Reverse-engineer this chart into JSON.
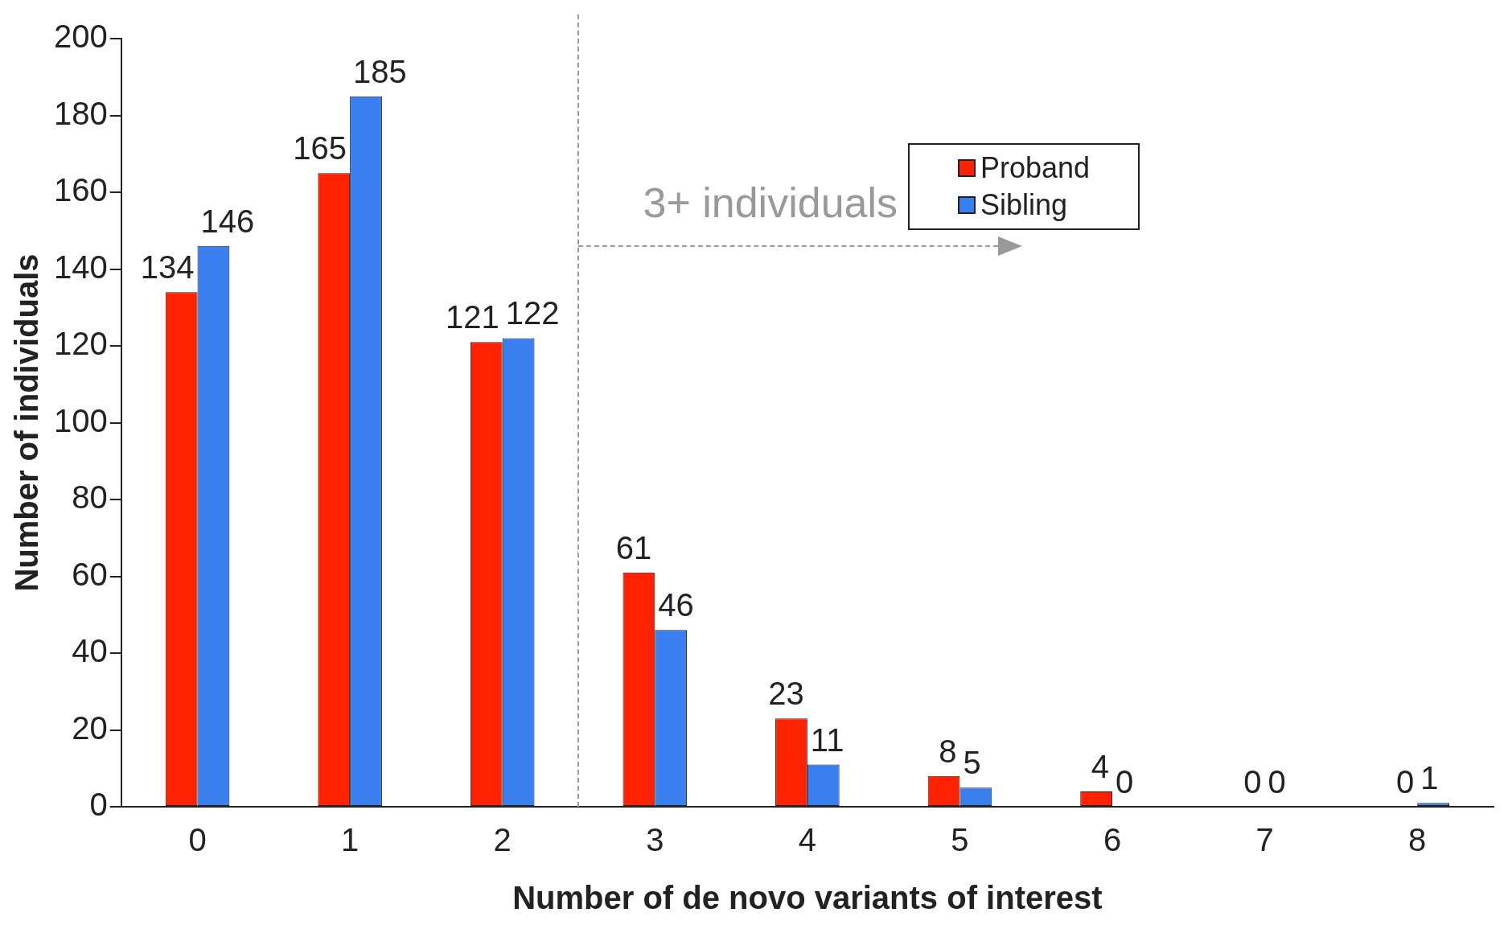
{
  "chart_data": {
    "type": "bar",
    "xlabel": "Number of de novo variants of interest",
    "ylabel": "Number of individuals",
    "categories": [
      "0",
      "1",
      "2",
      "3",
      "4",
      "5",
      "6",
      "7",
      "8"
    ],
    "series": [
      {
        "name": "Proband",
        "color": "#ff2200",
        "values": [
          134,
          165,
          121,
          61,
          23,
          8,
          4,
          0,
          0
        ]
      },
      {
        "name": "Sibling",
        "color": "#3a7ff0",
        "values": [
          146,
          185,
          122,
          46,
          11,
          5,
          0,
          0,
          1
        ]
      }
    ],
    "ylim": [
      0,
      200
    ],
    "yticks": [
      0,
      20,
      40,
      60,
      80,
      100,
      120,
      140,
      160,
      180,
      200
    ],
    "grid": false,
    "legend": "top right",
    "data_labels": true,
    "annotations": [
      "3+ individuals"
    ]
  }
}
